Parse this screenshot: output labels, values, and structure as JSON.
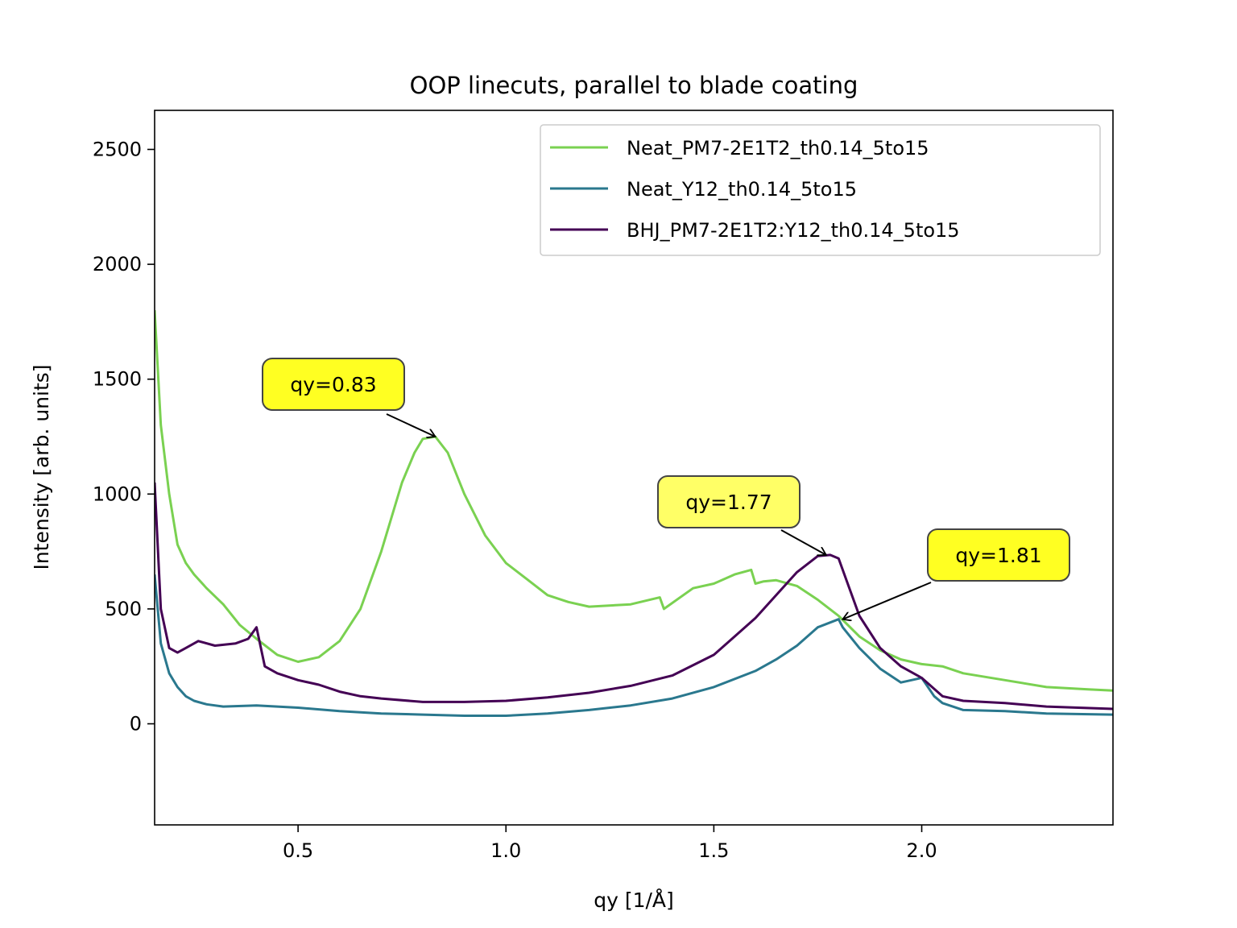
{
  "chart_data": {
    "type": "line",
    "title": "OOP linecuts, parallel to blade coating",
    "xlabel": "qy [1/Å]",
    "ylabel": "Intensity [arb. units]",
    "xlim": [
      0.155,
      2.46
    ],
    "ylim": [
      -440,
      2670
    ],
    "xticks": [
      0.5,
      1.0,
      1.5,
      2.0
    ],
    "yticks": [
      0,
      500,
      1000,
      1500,
      2000,
      2500
    ],
    "xtick_labels": [
      "0.5",
      "1.0",
      "1.5",
      "2.0"
    ],
    "ytick_labels": [
      "0",
      "500",
      "1000",
      "1500",
      "2000",
      "2500"
    ],
    "grid": false,
    "legend_position": "top-right",
    "series": [
      {
        "name": "Neat_PM7-2E1T2_th0.14_5to15",
        "color": "#7ad151",
        "x": [
          0.155,
          0.17,
          0.19,
          0.21,
          0.23,
          0.25,
          0.28,
          0.32,
          0.36,
          0.4,
          0.45,
          0.5,
          0.55,
          0.6,
          0.65,
          0.7,
          0.75,
          0.78,
          0.8,
          0.83,
          0.86,
          0.9,
          0.95,
          1.0,
          1.05,
          1.1,
          1.15,
          1.2,
          1.3,
          1.37,
          1.38,
          1.45,
          1.5,
          1.55,
          1.59,
          1.6,
          1.62,
          1.65,
          1.7,
          1.75,
          1.8,
          1.85,
          1.9,
          1.95,
          2.0,
          2.05,
          2.1,
          2.2,
          2.3,
          2.4,
          2.46
        ],
        "values": [
          1800,
          1300,
          1000,
          780,
          700,
          650,
          590,
          520,
          430,
          370,
          300,
          270,
          290,
          360,
          500,
          750,
          1050,
          1180,
          1240,
          1250,
          1180,
          1000,
          820,
          700,
          630,
          560,
          530,
          510,
          520,
          550,
          500,
          590,
          610,
          650,
          670,
          610,
          620,
          625,
          600,
          540,
          470,
          380,
          320,
          280,
          260,
          250,
          220,
          190,
          160,
          150,
          145
        ]
      },
      {
        "name": "Neat_Y12_th0.14_5to15",
        "color": "#2a788e",
        "x": [
          0.155,
          0.17,
          0.19,
          0.21,
          0.23,
          0.25,
          0.28,
          0.32,
          0.4,
          0.5,
          0.6,
          0.7,
          0.8,
          0.9,
          1.0,
          1.1,
          1.2,
          1.3,
          1.4,
          1.5,
          1.6,
          1.65,
          1.7,
          1.75,
          1.8,
          1.81,
          1.85,
          1.9,
          1.95,
          2.0,
          2.03,
          2.05,
          2.1,
          2.2,
          2.3,
          2.46
        ],
        "values": [
          650,
          350,
          220,
          160,
          120,
          100,
          85,
          75,
          80,
          70,
          55,
          45,
          40,
          35,
          35,
          45,
          60,
          80,
          110,
          160,
          230,
          280,
          340,
          420,
          455,
          420,
          330,
          240,
          180,
          200,
          120,
          90,
          60,
          55,
          45,
          40
        ]
      },
      {
        "name": "BHJ_PM7-2E1T2:Y12_th0.14_5to15",
        "color": "#440154",
        "x": [
          0.155,
          0.17,
          0.19,
          0.21,
          0.23,
          0.26,
          0.3,
          0.35,
          0.38,
          0.4,
          0.42,
          0.45,
          0.5,
          0.55,
          0.6,
          0.65,
          0.7,
          0.8,
          0.9,
          1.0,
          1.1,
          1.2,
          1.3,
          1.4,
          1.5,
          1.55,
          1.6,
          1.65,
          1.7,
          1.75,
          1.78,
          1.8,
          1.82,
          1.85,
          1.9,
          1.95,
          2.0,
          2.05,
          2.1,
          2.2,
          2.3,
          2.46
        ],
        "values": [
          1050,
          500,
          330,
          310,
          330,
          360,
          340,
          350,
          370,
          420,
          250,
          220,
          190,
          170,
          140,
          120,
          110,
          95,
          95,
          100,
          115,
          135,
          165,
          210,
          300,
          380,
          460,
          560,
          660,
          730,
          735,
          720,
          620,
          470,
          330,
          250,
          200,
          120,
          100,
          90,
          75,
          65
        ]
      }
    ],
    "annotations": [
      {
        "text": "qy=0.83",
        "x": 0.83,
        "y": 1250,
        "box_color": "#ffff22"
      },
      {
        "text": "qy=1.77",
        "x": 1.77,
        "y": 735,
        "box_color": "#ffff66"
      },
      {
        "text": "qy=1.81",
        "x": 1.81,
        "y": 455,
        "box_color": "#ffff22"
      }
    ]
  }
}
